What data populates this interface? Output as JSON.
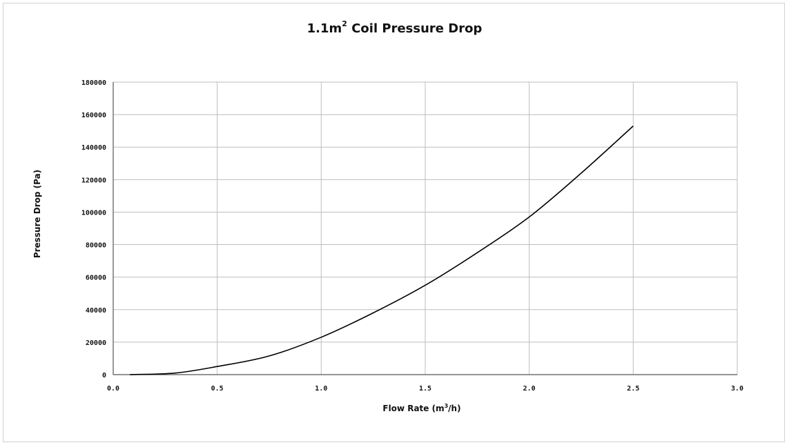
{
  "chart_data": {
    "type": "line",
    "title_main": "1.1m",
    "title_sup": "2",
    "title_rest": " Coil Pressure Drop",
    "xlabel_main": "Flow Rate (m",
    "xlabel_sup": "3",
    "xlabel_rest": "/h)",
    "ylabel": "Pressure Drop (Pa)",
    "xlim": [
      0,
      3.0
    ],
    "ylim": [
      0,
      180000
    ],
    "x_ticks": [
      "0.0",
      "0.5",
      "1.0",
      "1.5",
      "2.0",
      "2.5",
      "3.0"
    ],
    "y_ticks": [
      "0",
      "20000",
      "40000",
      "60000",
      "80000",
      "100000",
      "120000",
      "140000",
      "160000",
      "180000"
    ],
    "grid": true,
    "series": [
      {
        "x": [
          0.08,
          0.3,
          0.5,
          0.75,
          1.0,
          1.25,
          1.5,
          1.75,
          2.0,
          2.25,
          2.5
        ],
        "y": [
          0,
          1000,
          5000,
          11500,
          23000,
          38000,
          55000,
          75000,
          97000,
          124000,
          153000
        ],
        "color": "#000000"
      }
    ]
  }
}
